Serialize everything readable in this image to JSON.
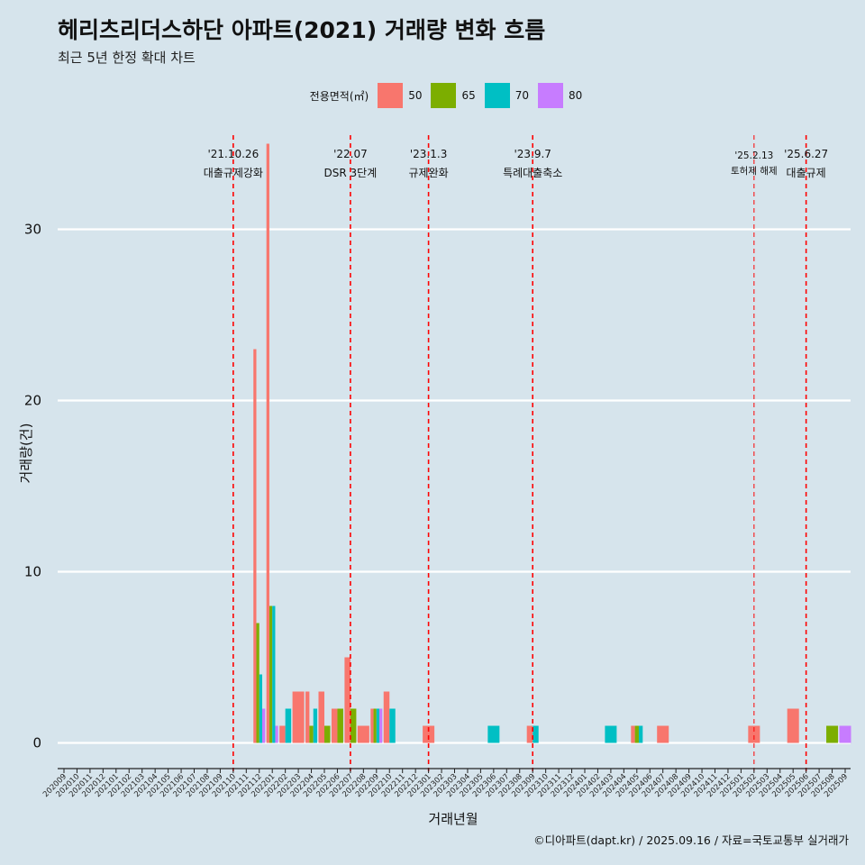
{
  "title": "헤리츠리더스하단 아파트(2021) 거래량 변화 흐름",
  "subtitle": "최근 5년 한정 확대 차트",
  "caption": "©디아파트(dapt.kr) / 2025.09.16 / 자료=국토교통부 실거래가",
  "legend": {
    "title": "전용면적(㎡)",
    "items": [
      {
        "label": "50",
        "color": "#f8766d"
      },
      {
        "label": "65",
        "color": "#7cae00"
      },
      {
        "label": "70",
        "color": "#00bfc4"
      },
      {
        "label": "80",
        "color": "#c77cff"
      }
    ]
  },
  "chart_data": {
    "type": "bar",
    "xlabel": "거래년월",
    "ylabel": "거래량(건)",
    "ylim": [
      -1.5,
      35.5
    ],
    "yticks": [
      0,
      10,
      20,
      30
    ],
    "categories": [
      "202009",
      "202010",
      "202011",
      "202012",
      "202101",
      "202102",
      "202103",
      "202104",
      "202105",
      "202106",
      "202107",
      "202108",
      "202109",
      "202110",
      "202111",
      "202112",
      "202201",
      "202202",
      "202203",
      "202204",
      "202205",
      "202206",
      "202207",
      "202208",
      "202209",
      "202210",
      "202211",
      "202212",
      "202301",
      "202302",
      "202303",
      "202304",
      "202305",
      "202306",
      "202307",
      "202308",
      "202309",
      "202310",
      "202311",
      "202312",
      "202401",
      "202402",
      "202403",
      "202404",
      "202405",
      "202406",
      "202407",
      "202408",
      "202409",
      "202410",
      "202411",
      "202412",
      "202501",
      "202502",
      "202503",
      "202504",
      "202505",
      "202506",
      "202507",
      "202508",
      "202509"
    ],
    "series": [
      {
        "name": "50",
        "color": "#f8766d",
        "data": {
          "202112": 23,
          "202201": 35,
          "202202": 1,
          "202203": 3,
          "202204": 3,
          "202205": 3,
          "202206": 2,
          "202207": 5,
          "202208": 1,
          "202209": 2,
          "202210": 3,
          "202301": 1,
          "202309": 1,
          "202405": 1,
          "202407": 1,
          "202502": 1,
          "202505": 2
        }
      },
      {
        "name": "65",
        "color": "#7cae00",
        "data": {
          "202112": 7,
          "202201": 8,
          "202204": 1,
          "202205": 1,
          "202206": 2,
          "202207": 2,
          "202209": 2,
          "202405": 1,
          "202508": 1
        }
      },
      {
        "name": "70",
        "color": "#00bfc4",
        "data": {
          "202112": 4,
          "202201": 8,
          "202202": 2,
          "202204": 2,
          "202209": 2,
          "202210": 2,
          "202306": 1,
          "202309": 1,
          "202403": 1,
          "202405": 1
        }
      },
      {
        "name": "80",
        "color": "#c77cff",
        "data": {
          "202112": 2,
          "202201": 1,
          "202209": 2,
          "202509": 1
        }
      }
    ],
    "grid": true,
    "legend_position": "top",
    "annotations": [
      {
        "line1": "'21.10.26",
        "line2": "대출규제강화",
        "at": "202110",
        "style": "normal"
      },
      {
        "line1": "'22.07",
        "line2": "DSR 3단계",
        "at": "202207",
        "style": "normal"
      },
      {
        "line1": "'23.1.3",
        "line2": "규제완화",
        "at": "202301",
        "style": "normal"
      },
      {
        "line1": "'23.9.7",
        "line2": "특례대출축소",
        "at": "202309",
        "style": "normal"
      },
      {
        "line1": "'25.2.13",
        "line2": "토허제 해제",
        "at": "202502",
        "style": "small"
      },
      {
        "line1": "'25.6.27",
        "line2": "대출규제",
        "at": "202506",
        "style": "normal"
      }
    ],
    "annotation_line_color": "#ff0000"
  }
}
